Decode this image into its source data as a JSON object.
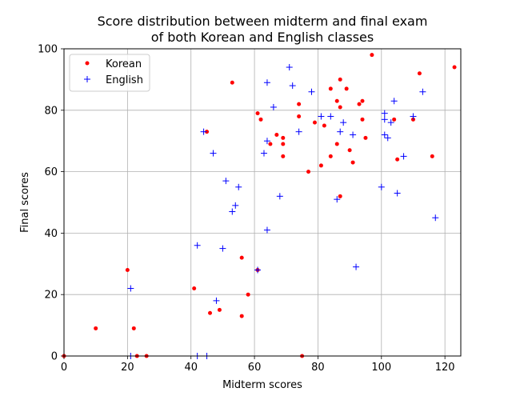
{
  "chart_data": {
    "type": "scatter",
    "title": [
      "Score distribution between midterm and final exam",
      "of both Korean and English classes"
    ],
    "xlabel": "Midterm scores",
    "ylabel": "Final scores",
    "xlim": [
      0,
      125
    ],
    "ylim": [
      0,
      100
    ],
    "xticks": [
      0,
      20,
      40,
      60,
      80,
      100,
      120
    ],
    "yticks": [
      0,
      20,
      40,
      60,
      80,
      100
    ],
    "grid": true,
    "legend_position": "top-left",
    "series": [
      {
        "name": "Korean",
        "marker": "dot",
        "color": "#ff0000",
        "points": [
          [
            0,
            0
          ],
          [
            10,
            9
          ],
          [
            20,
            28
          ],
          [
            22,
            9
          ],
          [
            23,
            0
          ],
          [
            26,
            0
          ],
          [
            41,
            22
          ],
          [
            45,
            73
          ],
          [
            46,
            14
          ],
          [
            49,
            15
          ],
          [
            53,
            89
          ],
          [
            56,
            32
          ],
          [
            56,
            13
          ],
          [
            58,
            20
          ],
          [
            61,
            28
          ],
          [
            61,
            79
          ],
          [
            62,
            77
          ],
          [
            65,
            69
          ],
          [
            67,
            72
          ],
          [
            69,
            71
          ],
          [
            69,
            69
          ],
          [
            69,
            65
          ],
          [
            74,
            82
          ],
          [
            74,
            78
          ],
          [
            75,
            0
          ],
          [
            77,
            60
          ],
          [
            79,
            76
          ],
          [
            81,
            62
          ],
          [
            82,
            75
          ],
          [
            84,
            87
          ],
          [
            84,
            65
          ],
          [
            86,
            83
          ],
          [
            86,
            69
          ],
          [
            87,
            90
          ],
          [
            87,
            81
          ],
          [
            87,
            52
          ],
          [
            89,
            87
          ],
          [
            90,
            67
          ],
          [
            91,
            63
          ],
          [
            93,
            82
          ],
          [
            94,
            83
          ],
          [
            94,
            77
          ],
          [
            95,
            71
          ],
          [
            97,
            98
          ],
          [
            104,
            77
          ],
          [
            105,
            64
          ],
          [
            110,
            77
          ],
          [
            112,
            92
          ],
          [
            116,
            65
          ],
          [
            123,
            94
          ]
        ]
      },
      {
        "name": "English",
        "marker": "plus",
        "color": "#0000ff",
        "points": [
          [
            21,
            22
          ],
          [
            21,
            0
          ],
          [
            42,
            36
          ],
          [
            42,
            0
          ],
          [
            44,
            73
          ],
          [
            45,
            0
          ],
          [
            47,
            66
          ],
          [
            48,
            18
          ],
          [
            50,
            35
          ],
          [
            51,
            57
          ],
          [
            53,
            47
          ],
          [
            54,
            49
          ],
          [
            55,
            55
          ],
          [
            61,
            28
          ],
          [
            63,
            66
          ],
          [
            64,
            89
          ],
          [
            64,
            70
          ],
          [
            64,
            41
          ],
          [
            66,
            81
          ],
          [
            68,
            52
          ],
          [
            71,
            94
          ],
          [
            72,
            88
          ],
          [
            74,
            73
          ],
          [
            78,
            86
          ],
          [
            81,
            78
          ],
          [
            84,
            78
          ],
          [
            86,
            51
          ],
          [
            87,
            73
          ],
          [
            88,
            76
          ],
          [
            91,
            72
          ],
          [
            92,
            29
          ],
          [
            100,
            55
          ],
          [
            101,
            79
          ],
          [
            101,
            77
          ],
          [
            101,
            72
          ],
          [
            102,
            71
          ],
          [
            103,
            76
          ],
          [
            104,
            83
          ],
          [
            105,
            53
          ],
          [
            107,
            65
          ],
          [
            110,
            78
          ],
          [
            113,
            86
          ],
          [
            117,
            45
          ]
        ]
      }
    ]
  }
}
